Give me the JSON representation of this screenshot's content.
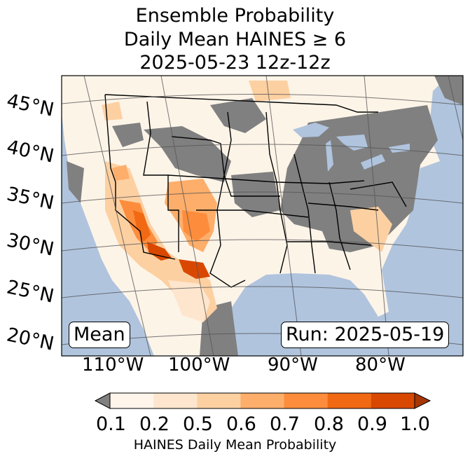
{
  "title": {
    "line1": "Ensemble Probability",
    "line2": "Daily Mean HAINES ≥ 6",
    "line3": "2025-05-23 12z-12z"
  },
  "map": {
    "latitude_labels": [
      "45°N",
      "40°N",
      "35°N",
      "30°N",
      "25°N",
      "20°N"
    ],
    "longitude_labels": [
      "110°W",
      "100°W",
      "90°W",
      "80°W"
    ],
    "left_box": "Mean",
    "right_box": "Run: 2025-05-19",
    "colors": {
      "ocean": "#b0c4de",
      "land": "#fdf4e8",
      "no_data": "#808080",
      "borders": "#000000"
    }
  },
  "colorbar": {
    "tick_labels": [
      "0.1",
      "0.2",
      "0.5",
      "0.6",
      "0.7",
      "0.8",
      "0.9",
      "1.0"
    ],
    "title": "HAINES Daily Mean Probability",
    "colors": [
      "#fff5eb",
      "#fee6ce",
      "#fdd0a2",
      "#fdae6b",
      "#fd8d3c",
      "#f16913",
      "#d94801",
      "#a63603"
    ],
    "under_color": "#808080"
  }
}
